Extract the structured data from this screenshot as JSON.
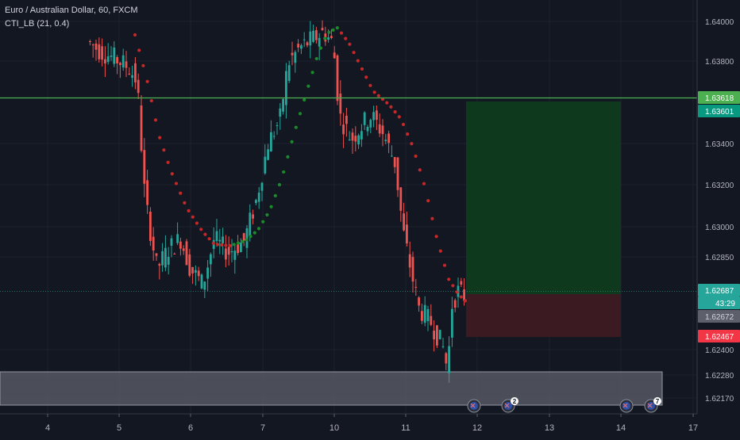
{
  "header": {
    "symbol_title": "Euro / Australian Dollar, 60, FXCM",
    "indicator_label": "CTI_LB (21, 0.4)"
  },
  "colors": {
    "background": "#131722",
    "grid": "#1e222d",
    "axis_text": "#b2b5be",
    "candle_up": "#26a69a",
    "candle_down": "#ef5350",
    "indicator_up": "#1b8a2a",
    "indicator_down": "#c62828",
    "resistance_line": "#4caf50",
    "target_zone": "#0e3b1e",
    "stop_zone": "#3d1a22",
    "support_zone": "#5a5d66"
  },
  "chart_data": {
    "type": "candlestick",
    "x_axis": {
      "tick_labels": [
        "4",
        "5",
        "6",
        "7",
        "10",
        "11",
        "12",
        "13",
        "14",
        "17"
      ]
    },
    "y_axis": {
      "range": [
        1.621,
        1.6418
      ],
      "tick_labels": [
        "1.64000",
        "1.63800",
        "1.63400",
        "1.63200",
        "1.63000",
        "1.62850",
        "1.62400",
        "1.62280",
        "1.62170"
      ]
    },
    "price_labels": [
      {
        "text": "1.63618",
        "kind": "resistance",
        "value": 1.63618,
        "color": "#4caf50"
      },
      {
        "text": "1.63601",
        "kind": "target",
        "value": 1.63601,
        "color": "#089981"
      },
      {
        "text": "1.62687",
        "kind": "last-price",
        "value": 1.62687,
        "color": "#26a69a"
      },
      {
        "text": "43:29",
        "kind": "countdown",
        "value": 1.62635,
        "color": "#26a69a"
      },
      {
        "text": "1.62672",
        "kind": "entry",
        "value": 1.62672,
        "color": "#5d606b"
      },
      {
        "text": "1.62467",
        "kind": "stop",
        "value": 1.62467,
        "color": "#f23645"
      }
    ],
    "resistance_level": 1.63618,
    "support_zone": {
      "top": 1.6229,
      "bottom": 1.6213
    },
    "position": {
      "entry": 1.62672,
      "target": 1.63601,
      "stop": 1.62467
    },
    "event_markers": [
      {
        "tick": "12",
        "badge": ""
      },
      {
        "tick": "12",
        "badge": "2"
      },
      {
        "tick": "14",
        "badge": ""
      },
      {
        "tick": "14",
        "badge": "7"
      }
    ]
  }
}
